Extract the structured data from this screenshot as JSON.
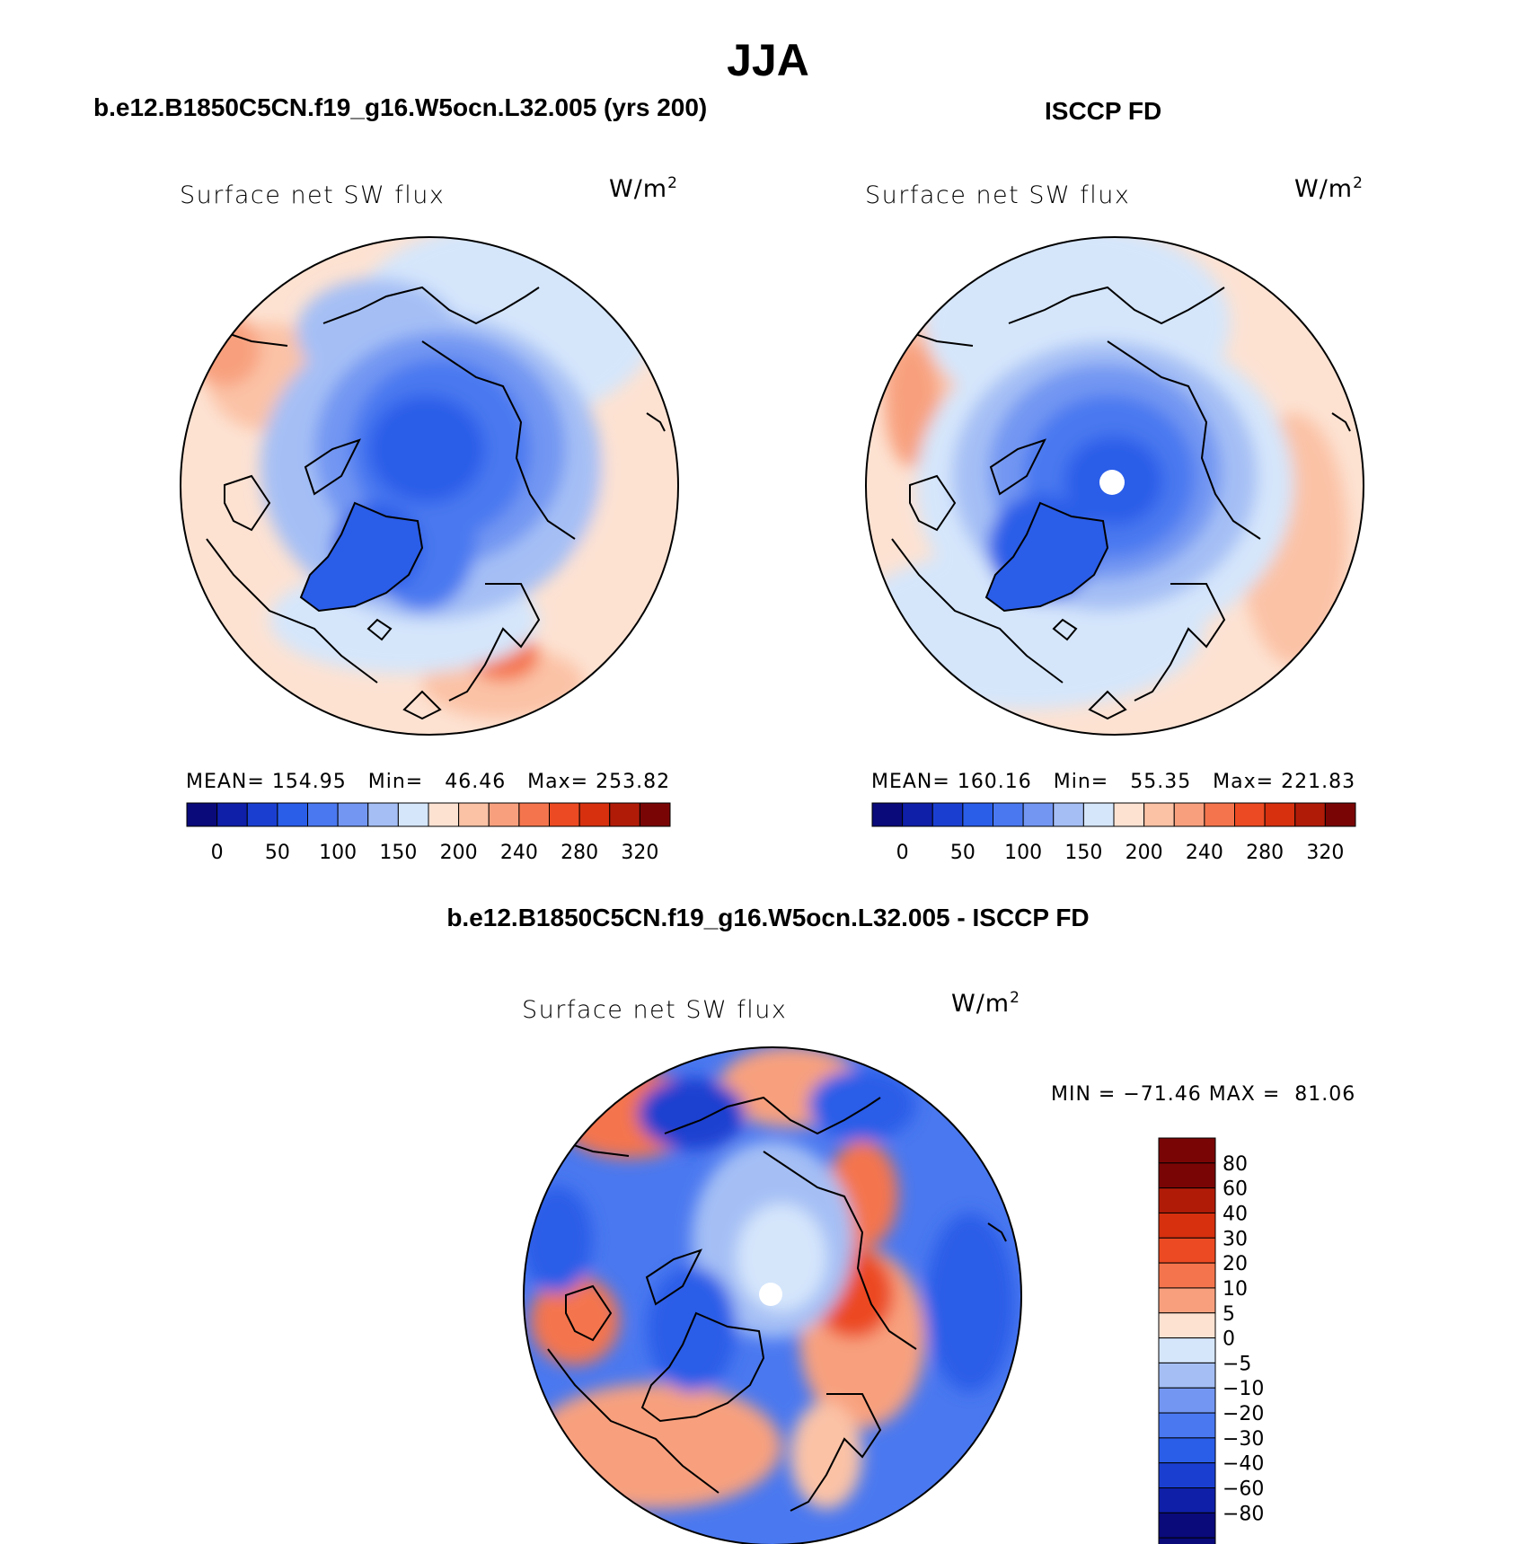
{
  "title": "JJA",
  "panels": {
    "model": {
      "header": "b.e12.B1850C5CN.f19_g16.W5ocn.L32.005 (yrs 200)",
      "variable": "Surface net SW flux",
      "units": "W/m",
      "units_exp": "2",
      "stats": {
        "mean": "154.95",
        "min": "46.46",
        "max": "253.82"
      },
      "stats_text": "MEAN= 154.95   Min=   46.46   Max= 253.82"
    },
    "obs": {
      "header": "ISCCP FD",
      "variable": "Surface net SW flux",
      "units": "W/m",
      "units_exp": "2",
      "stats": {
        "mean": "160.16",
        "min": "55.35",
        "max": "221.83"
      },
      "stats_text": "MEAN= 160.16   Min=   55.35   Max= 221.83"
    },
    "diff": {
      "header": "b.e12.B1850C5CN.f19_g16.W5ocn.L32.005 - ISCCP FD",
      "variable": "Surface net SW flux",
      "units": "W/m",
      "units_exp": "2",
      "stats": {
        "min": "-71.46",
        "max": "81.06"
      },
      "stats_text": "MIN = −71.46 MAX =  81.06"
    }
  },
  "colorbars": {
    "absolute": {
      "colors": [
        "#0a0a7a",
        "#0f1fa8",
        "#1a3fd0",
        "#2a5de8",
        "#4a78f0",
        "#7296f2",
        "#a5bff5",
        "#d5e6fb",
        "#fde2d2",
        "#fbc2a6",
        "#f8a07e",
        "#f4754d",
        "#ec4a22",
        "#d6300f",
        "#b01b08",
        "#7a0505"
      ],
      "labels": [
        "0",
        "50",
        "100",
        "150",
        "200",
        "240",
        "280",
        "320"
      ]
    },
    "difference": {
      "colors": [
        "#7a0505",
        "#b01b08",
        "#d6300f",
        "#ec4a22",
        "#f4754d",
        "#f8a07e",
        "#fde2d2",
        "#d5e6fb",
        "#a5bff5",
        "#7296f2",
        "#4a78f0",
        "#2a5de8",
        "#1a3fd0",
        "#0f1fa8",
        "#0a0a7a"
      ],
      "labels": [
        "80",
        "60",
        "40",
        "30",
        "20",
        "10",
        "5",
        "0",
        "−5",
        "−10",
        "−20",
        "−30",
        "−40",
        "−60",
        "−80"
      ]
    }
  }
}
